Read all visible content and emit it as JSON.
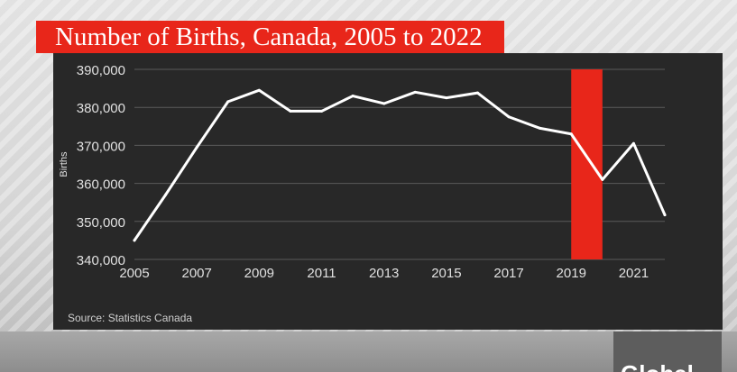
{
  "title": "Number of Births, Canada, 2005 to 2022",
  "source": "Source: Statistics Canada",
  "logo_text": "Global",
  "colors": {
    "panel_bg": "#282828",
    "line": "#ffffff",
    "highlight": "#e8261a",
    "grid": "#5a5a5a",
    "tick_label": "#e0e0e0"
  },
  "chart_data": {
    "type": "line",
    "ylabel": "Births",
    "xlabel": "",
    "ylim": [
      340000,
      390000
    ],
    "xlim": [
      2005,
      2022
    ],
    "yticks": [
      340000,
      350000,
      360000,
      370000,
      380000,
      390000
    ],
    "ytick_labels": [
      "340,000",
      "350,000",
      "360,000",
      "370,000",
      "380,000",
      "390,000"
    ],
    "xticks": [
      2005,
      2007,
      2009,
      2011,
      2013,
      2015,
      2017,
      2019,
      2021
    ],
    "xtick_labels": [
      "2005",
      "2007",
      "2009",
      "2011",
      "2013",
      "2015",
      "2017",
      "2019",
      "2021"
    ],
    "grid": true,
    "x": [
      2005,
      2006,
      2007,
      2008,
      2009,
      2010,
      2011,
      2012,
      2013,
      2014,
      2015,
      2016,
      2017,
      2018,
      2019,
      2020,
      2021,
      2022
    ],
    "series": [
      {
        "values": [
          345000,
          357000,
          369500,
          381500,
          384500,
          379000,
          379000,
          383000,
          381000,
          384000,
          382500,
          383800,
          377500,
          374500,
          373000,
          361000,
          370500,
          351700
        ]
      }
    ],
    "highlight": {
      "x_start": 2019,
      "x_end": 2020
    }
  }
}
